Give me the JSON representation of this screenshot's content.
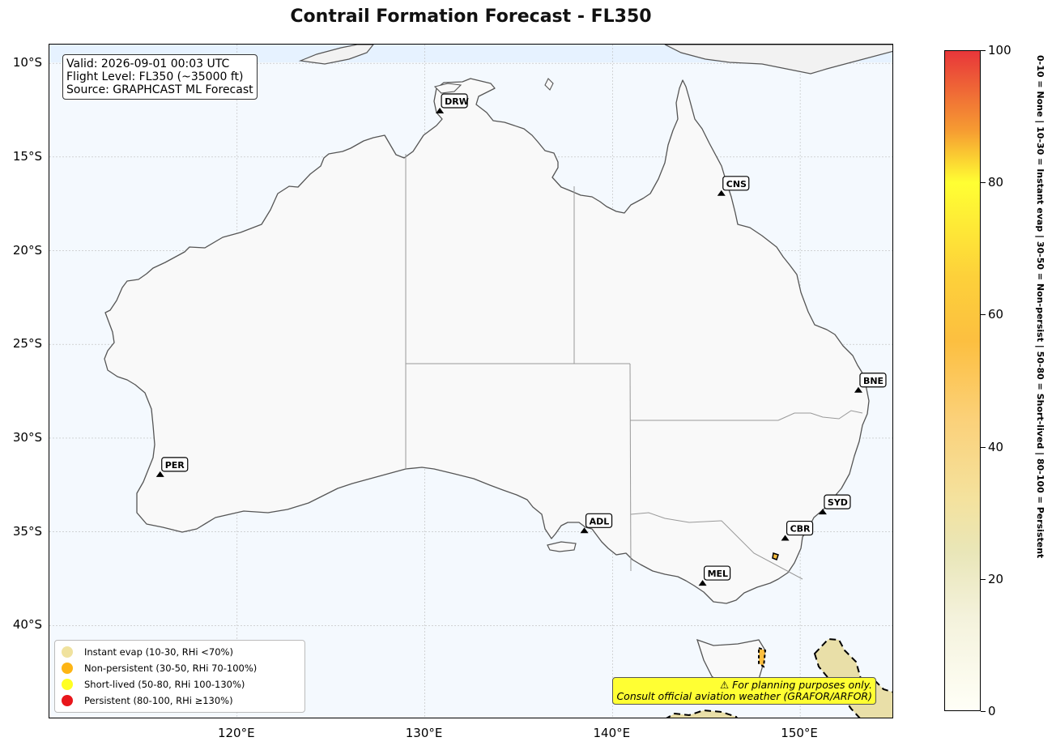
{
  "title": "Contrail Formation Forecast - FL350",
  "info_box": {
    "line1": "Valid: 2026-09-01 00:03 UTC",
    "line2": "Flight Level: FL350 (~35000 ft)",
    "line3": "Source: GRAPHCAST ML Forecast"
  },
  "legend": [
    {
      "label": "Instant evap (10-30, RHi <70%)",
      "color": "#f0e29e"
    },
    {
      "label": "Non-persistent (30-50, RHi 70-100%)",
      "color": "#fdb515"
    },
    {
      "label": "Short-lived (50-80, RHi 100-130%)",
      "color": "#ffff22"
    },
    {
      "label": "Persistent (80-100, RHi ≥130%)",
      "color": "#e8161b"
    }
  ],
  "disclaimer": {
    "line1": "⚠ For planning purposes only.",
    "line2": "Consult official aviation weather (GRAFOR/ARFOR)"
  },
  "axes": {
    "lat_labels": [
      "10°S",
      "15°S",
      "20°S",
      "25°S",
      "30°S",
      "35°S",
      "40°S"
    ],
    "lon_labels": [
      "120°E",
      "130°E",
      "140°E",
      "150°E"
    ]
  },
  "airports": [
    {
      "code": "DRW",
      "lon": 130.8,
      "lat": -12.5
    },
    {
      "code": "CNS",
      "lon": 145.8,
      "lat": -16.9
    },
    {
      "code": "BNE",
      "lon": 153.1,
      "lat": -27.4
    },
    {
      "code": "PER",
      "lon": 115.9,
      "lat": -31.9
    },
    {
      "code": "ADL",
      "lon": 138.5,
      "lat": -34.9
    },
    {
      "code": "SYD",
      "lon": 151.2,
      "lat": -33.9
    },
    {
      "code": "CBR",
      "lon": 149.2,
      "lat": -35.3
    },
    {
      "code": "MEL",
      "lon": 144.8,
      "lat": -37.7
    }
  ],
  "colorbar": {
    "ticks": [
      "0",
      "20",
      "40",
      "60",
      "80",
      "100"
    ],
    "label": "0-10 = None  |  10-30 = Instant evap  |  30-50 = Non-persist  |  50-80 = Short-lived  |  80-100 = Persistent"
  },
  "colors": {
    "land": "#f9f9f9",
    "ocean": "#f4f9fe",
    "coast": "#555555",
    "border": "#999999"
  }
}
